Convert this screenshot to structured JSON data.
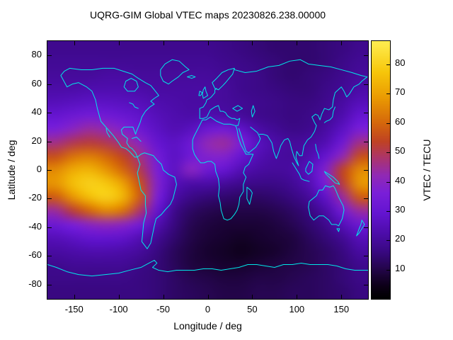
{
  "title": "UQRG-GIM Global VTEC maps 20230826.238.00000",
  "chart_data": {
    "type": "heatmap",
    "title": "UQRG-GIM Global VTEC maps 20230826.238.00000",
    "xlabel": "Longitude / deg",
    "ylabel": "Latitude / deg",
    "xlim": [
      -180,
      180
    ],
    "ylim": [
      -90,
      90
    ],
    "x_ticks": [
      -150,
      -100,
      -50,
      0,
      50,
      100,
      150
    ],
    "y_ticks": [
      -80,
      -60,
      -40,
      -20,
      0,
      20,
      40,
      60,
      80
    ],
    "grid": false,
    "units": "TECU",
    "x": [
      -180,
      -160,
      -140,
      -120,
      -100,
      -80,
      -60,
      -40,
      -20,
      0,
      20,
      40,
      60,
      80,
      100,
      120,
      140,
      160,
      180
    ],
    "y": [
      90,
      80,
      70,
      60,
      50,
      40,
      30,
      20,
      10,
      0,
      -10,
      -20,
      -30,
      -40,
      -50,
      -60,
      -70,
      -80,
      -90
    ],
    "values": [
      [
        18,
        18,
        18,
        18,
        18,
        18,
        18,
        18,
        18,
        18,
        17,
        16,
        15,
        14,
        14,
        14,
        15,
        16,
        18
      ],
      [
        19,
        19,
        19,
        19,
        19,
        19,
        19,
        19,
        19,
        19,
        18,
        17,
        16,
        15,
        14,
        14,
        15,
        17,
        19
      ],
      [
        20,
        20,
        20,
        21,
        21,
        20,
        20,
        20,
        20,
        20,
        19,
        18,
        17,
        15,
        14,
        15,
        16,
        18,
        20
      ],
      [
        22,
        22,
        23,
        23,
        23,
        22,
        21,
        21,
        21,
        21,
        20,
        18,
        17,
        16,
        15,
        15,
        17,
        19,
        22
      ],
      [
        25,
        26,
        27,
        27,
        26,
        25,
        23,
        22,
        21,
        21,
        20,
        19,
        18,
        17,
        16,
        16,
        18,
        21,
        25
      ],
      [
        30,
        32,
        34,
        33,
        31,
        28,
        25,
        23,
        22,
        23,
        22,
        20,
        18,
        17,
        16,
        17,
        19,
        23,
        30
      ],
      [
        36,
        40,
        44,
        42,
        38,
        32,
        27,
        24,
        26,
        32,
        34,
        28,
        22,
        19,
        17,
        18,
        21,
        27,
        36
      ],
      [
        46,
        50,
        52,
        50,
        46,
        40,
        30,
        27,
        32,
        42,
        44,
        36,
        26,
        22,
        20,
        21,
        24,
        33,
        46
      ],
      [
        56,
        62,
        64,
        60,
        54,
        46,
        34,
        27,
        33,
        38,
        38,
        30,
        24,
        21,
        20,
        23,
        30,
        42,
        56
      ],
      [
        66,
        72,
        74,
        68,
        60,
        50,
        36,
        27,
        40,
        32,
        30,
        24,
        21,
        20,
        21,
        26,
        38,
        54,
        66
      ],
      [
        68,
        76,
        80,
        78,
        70,
        56,
        38,
        25,
        22,
        22,
        20,
        18,
        17,
        17,
        19,
        24,
        36,
        52,
        68
      ],
      [
        58,
        68,
        76,
        80,
        74,
        58,
        36,
        22,
        17,
        15,
        14,
        13,
        13,
        14,
        16,
        20,
        28,
        44,
        58
      ],
      [
        44,
        52,
        60,
        66,
        62,
        48,
        30,
        18,
        13,
        11,
        10,
        10,
        10,
        11,
        13,
        16,
        22,
        34,
        44
      ],
      [
        32,
        36,
        40,
        42,
        40,
        34,
        24,
        16,
        11,
        9,
        8,
        8,
        8,
        9,
        11,
        14,
        18,
        25,
        32
      ],
      [
        25,
        27,
        29,
        29,
        28,
        24,
        19,
        14,
        10,
        8,
        7,
        6,
        7,
        8,
        9,
        12,
        15,
        19,
        25
      ],
      [
        21,
        22,
        23,
        23,
        22,
        20,
        16,
        12,
        9,
        7,
        6,
        5,
        6,
        7,
        9,
        11,
        13,
        16,
        21
      ],
      [
        18,
        19,
        19,
        19,
        19,
        17,
        15,
        12,
        9,
        8,
        7,
        7,
        8,
        9,
        10,
        11,
        13,
        15,
        18
      ],
      [
        17,
        17,
        17,
        17,
        17,
        16,
        15,
        13,
        11,
        10,
        9,
        9,
        10,
        10,
        11,
        12,
        13,
        15,
        17
      ],
      [
        16,
        16,
        16,
        16,
        16,
        16,
        15,
        13,
        12,
        11,
        10,
        10,
        11,
        11,
        12,
        12,
        13,
        14,
        16
      ]
    ]
  },
  "colorbar": {
    "label": "VTEC / TECU",
    "ticks": [
      10,
      20,
      30,
      40,
      50,
      60,
      70,
      80
    ],
    "min": 0,
    "max": 88,
    "stops": [
      [
        0.0,
        "#000000"
      ],
      [
        0.05,
        "#0d0018"
      ],
      [
        0.11,
        "#220546"
      ],
      [
        0.18,
        "#380880"
      ],
      [
        0.25,
        "#4c0ca8"
      ],
      [
        0.33,
        "#6314d0"
      ],
      [
        0.41,
        "#7a1fd8"
      ],
      [
        0.48,
        "#9129b4"
      ],
      [
        0.55,
        "#ad3568"
      ],
      [
        0.61,
        "#bf4224"
      ],
      [
        0.68,
        "#d4660c"
      ],
      [
        0.78,
        "#ea9a02"
      ],
      [
        0.88,
        "#f6c60a"
      ],
      [
        1.0,
        "#ffee50"
      ]
    ]
  },
  "colors": {
    "coastline": "#00e8e8",
    "frame": "#000000",
    "background": "#ffffff",
    "text": "#000000"
  }
}
